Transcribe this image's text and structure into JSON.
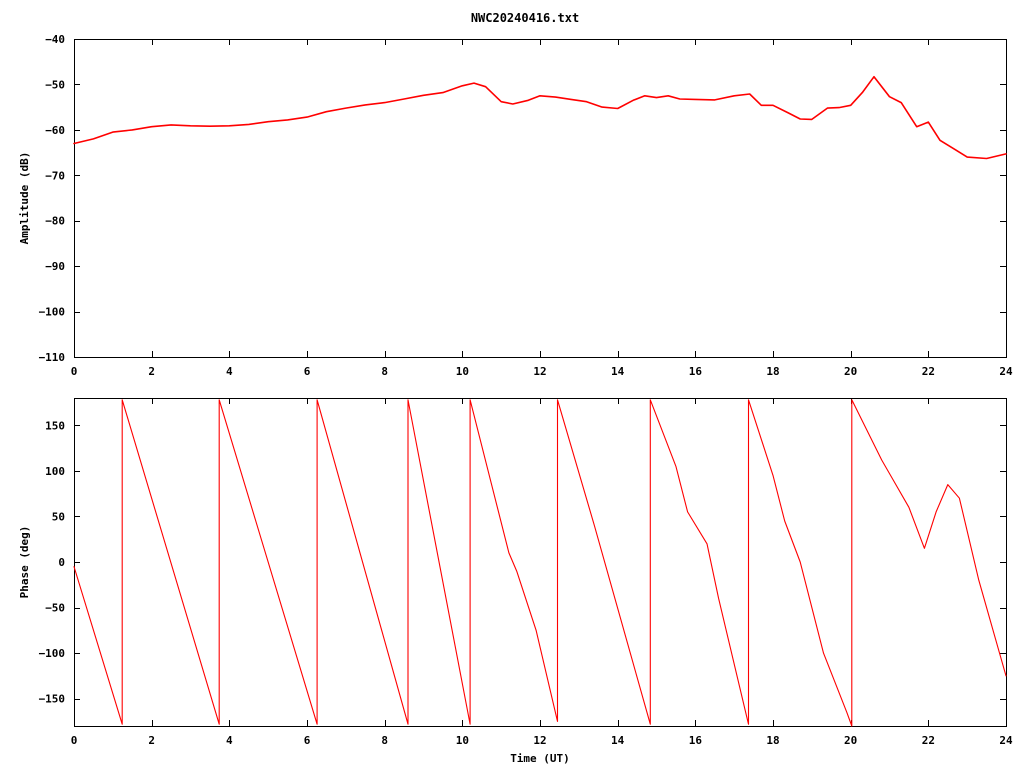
{
  "title": "NWC20240416.txt",
  "colors": {
    "series": "#ff0000",
    "frame": "#000000",
    "background": "#ffffff"
  },
  "chart_data": [
    {
      "type": "line",
      "ylabel": "Amplitude (dB)",
      "xlabel": "",
      "xlim": [
        0,
        24
      ],
      "ylim": [
        -110,
        -40
      ],
      "xticks": [
        0,
        2,
        4,
        6,
        8,
        10,
        12,
        14,
        16,
        18,
        20,
        22,
        24
      ],
      "yticks": [
        -40,
        -50,
        -60,
        -70,
        -80,
        -90,
        -100,
        -110
      ],
      "grid": false,
      "legend": "none",
      "x": [
        0,
        0.5,
        1,
        1.5,
        2,
        2.5,
        3,
        3.5,
        4,
        4.5,
        5,
        5.5,
        6,
        6.5,
        7,
        7.5,
        8,
        8.5,
        9,
        9.5,
        10,
        10.3,
        10.6,
        11,
        11.3,
        11.7,
        12,
        12.4,
        12.8,
        13.2,
        13.6,
        14,
        14.4,
        14.7,
        15,
        15.3,
        15.6,
        16,
        16.5,
        17,
        17.4,
        17.7,
        18,
        18.4,
        18.7,
        19,
        19.4,
        19.7,
        20,
        20.3,
        20.6,
        21,
        21.3,
        21.7,
        22,
        22.3,
        22.7,
        23,
        23.5,
        24
      ],
      "y": [
        -63,
        -62,
        -60.5,
        -60,
        -59.3,
        -58.9,
        -59.1,
        -59.2,
        -59.1,
        -58.8,
        -58.2,
        -57.8,
        -57.2,
        -56,
        -55.2,
        -54.5,
        -54,
        -53.2,
        -52.4,
        -51.8,
        -50.3,
        -49.7,
        -50.5,
        -53.8,
        -54.3,
        -53.5,
        -52.5,
        -52.8,
        -53.3,
        -53.8,
        -55,
        -55.3,
        -53.5,
        -52.5,
        -52.9,
        -52.5,
        -53.2,
        -53.3,
        -53.4,
        -52.5,
        -52.1,
        -54.6,
        -54.6,
        -56.3,
        -57.6,
        -57.7,
        -55.2,
        -55.1,
        -54.6,
        -51.8,
        -48.3,
        -52.7,
        -54,
        -59.3,
        -58.3,
        -62.3,
        -64.4,
        -66,
        -66.3,
        -65.3
      ]
    },
    {
      "type": "line",
      "ylabel": "Phase (deg)",
      "xlabel": "Time (UT)",
      "xlim": [
        0,
        24
      ],
      "ylim": [
        -180,
        180
      ],
      "xticks": [
        0,
        2,
        4,
        6,
        8,
        10,
        12,
        14,
        16,
        18,
        20,
        22,
        24
      ],
      "yticks": [
        150,
        100,
        50,
        0,
        -50,
        -100,
        -150
      ],
      "grid": false,
      "legend": "none",
      "x": [
        0,
        1.24,
        1.24,
        3.74,
        3.74,
        6.26,
        6.26,
        8.6,
        8.6,
        10.2,
        10.2,
        11.2,
        11.4,
        11.9,
        12.45,
        12.45,
        13.4,
        14.84,
        14.84,
        15.5,
        15.8,
        16.3,
        16.6,
        17.37,
        17.37,
        18,
        18.3,
        18.7,
        19.3,
        19.9,
        20.03,
        20.03,
        20.8,
        21.5,
        21.9,
        22.2,
        22.5,
        22.8,
        23.3,
        24
      ],
      "y": [
        -5,
        -178,
        178,
        -178,
        178,
        -178,
        178,
        -178,
        178,
        -178,
        178,
        10,
        -10,
        -75,
        -175,
        178,
        40,
        -178,
        178,
        105,
        55,
        20,
        -40,
        -178,
        178,
        95,
        45,
        0,
        -100,
        -165,
        -180,
        178,
        112,
        60,
        15,
        55,
        85,
        70,
        -20,
        -125
      ]
    }
  ]
}
